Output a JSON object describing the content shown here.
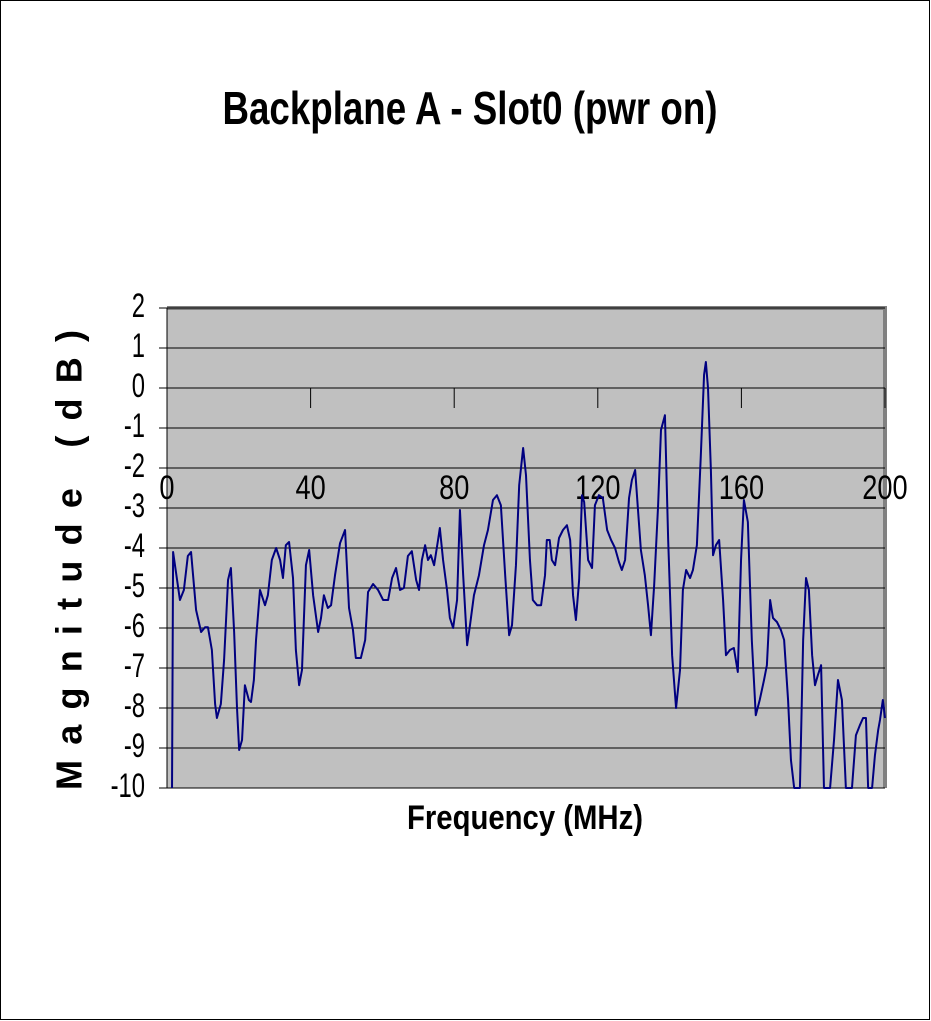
{
  "chart_data": {
    "type": "line",
    "title": "Backplane A - Slot0 (pwr on)",
    "x_label": "Frequency (MHz)",
    "y_label": "Magnitude (dB)",
    "xlim": [
      0,
      200
    ],
    "xticks": [
      0,
      40,
      80,
      120,
      160,
      200
    ],
    "ylim": [
      -10,
      2
    ],
    "yticks": [
      2,
      1,
      0,
      -1,
      -2,
      -3,
      -4,
      -5,
      -6,
      -7,
      -8,
      -9,
      -10
    ],
    "grid": true,
    "series": [
      {
        "name": "Magnitude",
        "color": "#000080",
        "x": [
          1.4,
          1.7,
          3.6,
          4.7,
          5.8,
          6.7,
          8.1,
          9.5,
          10.6,
          11.4,
          12.5,
          13.4,
          13.9,
          15,
          15.9,
          17,
          17.8,
          18.7,
          19.5,
          20.1,
          20.9,
          21.7,
          22.8,
          23.4,
          24.2,
          24.8,
          25.9,
          27.3,
          28.1,
          29.2,
          30.4,
          31.5,
          32.3,
          33.1,
          34,
          35.1,
          35.9,
          36.8,
          37.6,
          38.7,
          39.6,
          40.7,
          42.1,
          42.9,
          43.7,
          44.8,
          45.7,
          46.8,
          48.2,
          49.6,
          50.7,
          51.8,
          52.6,
          54,
          55.2,
          56,
          57.4,
          58.8,
          60.2,
          61.6,
          62.7,
          63.8,
          64.9,
          66,
          67.1,
          68.2,
          69.4,
          70.2,
          71,
          71.9,
          72.7,
          73.5,
          74.4,
          75.5,
          76,
          76.9,
          78,
          78.8,
          79.7,
          80.8,
          81.6,
          82.5,
          83.6,
          84.4,
          85.5,
          86.9,
          88.3,
          89.4,
          90.8,
          91.9,
          93,
          94.2,
          95.3,
          96.1,
          97.2,
          98.1,
          99.2,
          100,
          101.1,
          101.9,
          103.1,
          104.2,
          105.3,
          105.8,
          106.6,
          107.2,
          108.1,
          109.2,
          110.3,
          111.4,
          112.3,
          113.1,
          113.9,
          114.8,
          115.6,
          116.2,
          117.3,
          118.4,
          119.2,
          120.3,
          121.4,
          122.6,
          123.7,
          124.8,
          125.9,
          126.7,
          127.6,
          128.7,
          129.5,
          130.4,
          131.2,
          132,
          133.1,
          134,
          134.8,
          135.7,
          136.8,
          137.6,
          138.7,
          139.6,
          140.7,
          141.8,
          142.9,
          143.7,
          144.6,
          145.7,
          146.5,
          147.6,
          148.7,
          149.6,
          150.1,
          150.7,
          151.5,
          152.1,
          152.9,
          153.8,
          154.9,
          155.7,
          156.8,
          157.9,
          159,
          159.9,
          160.7,
          161.8,
          162.9,
          164,
          165.1,
          166.3,
          167.1,
          168,
          168.8,
          169.9,
          171,
          171.9,
          173,
          173.8,
          174.7,
          176.3,
          177.2,
          178,
          178.8,
          179.7,
          180.5,
          181.3,
          182.2,
          183,
          184.7,
          185.8,
          186.9,
          188,
          189.1,
          190.8,
          191.9,
          193,
          193.9,
          194.7,
          195.3,
          196.4,
          197.2,
          198.1,
          198.6,
          199.4,
          200
        ],
        "values": [
          -10,
          -4.1,
          -5.3,
          -5.05,
          -4.2,
          -4.1,
          -5.55,
          -6.1,
          -5.98,
          -5.98,
          -6.55,
          -7.9,
          -8.25,
          -7.9,
          -6.8,
          -4.8,
          -4.5,
          -6.1,
          -8,
          -9.05,
          -8.8,
          -7.43,
          -7.8,
          -7.85,
          -7.3,
          -6.3,
          -5.05,
          -5.43,
          -5.18,
          -4.3,
          -4,
          -4.3,
          -4.75,
          -3.93,
          -3.85,
          -4.75,
          -6.55,
          -7.43,
          -7.05,
          -4.43,
          -4.05,
          -5.18,
          -6.1,
          -5.75,
          -5.18,
          -5.5,
          -5.43,
          -4.68,
          -3.88,
          -3.55,
          -5.5,
          -6.05,
          -6.75,
          -6.75,
          -6.3,
          -5.1,
          -4.9,
          -5.05,
          -5.3,
          -5.3,
          -4.75,
          -4.5,
          -5.05,
          -5,
          -4.2,
          -4.08,
          -4.8,
          -5.05,
          -4.3,
          -3.93,
          -4.3,
          -4.18,
          -4.43,
          -3.8,
          -3.5,
          -4.3,
          -5.05,
          -5.75,
          -6,
          -5.3,
          -3.05,
          -4.68,
          -6.43,
          -5.93,
          -5.18,
          -4.68,
          -3.93,
          -3.55,
          -2.8,
          -2.68,
          -2.93,
          -4.68,
          -6.18,
          -5.93,
          -4.43,
          -2.43,
          -1.5,
          -2.18,
          -4.3,
          -5.3,
          -5.43,
          -5.43,
          -4.68,
          -3.8,
          -3.8,
          -4.3,
          -4.43,
          -3.75,
          -3.55,
          -3.43,
          -3.8,
          -5.18,
          -5.8,
          -4.8,
          -2.68,
          -2.85,
          -4.3,
          -4.5,
          -2.93,
          -2.68,
          -2.75,
          -3.55,
          -3.8,
          -4,
          -4.35,
          -4.55,
          -4.3,
          -2.75,
          -2.3,
          -2.05,
          -3.05,
          -4.05,
          -4.68,
          -5.43,
          -6.18,
          -4.93,
          -2.93,
          -1.05,
          -0.68,
          -3.8,
          -6.68,
          -8,
          -7.05,
          -5.05,
          -4.55,
          -4.75,
          -4.55,
          -3.93,
          -1.68,
          0.33,
          0.65,
          0,
          -2.05,
          -4.18,
          -3.93,
          -3.8,
          -5.3,
          -6.68,
          -6.55,
          -6.5,
          -7.1,
          -4.3,
          -2.8,
          -3.35,
          -6.3,
          -8.18,
          -7.8,
          -7.3,
          -6.93,
          -5.3,
          -5.75,
          -5.85,
          -6.05,
          -6.3,
          -7.8,
          -9.3,
          -10,
          -10,
          -6.3,
          -4.75,
          -5.05,
          -6.68,
          -7.43,
          -7.18,
          -6.93,
          -10,
          -10,
          -8.8,
          -7.3,
          -7.8,
          -10,
          -10,
          -8.68,
          -8.43,
          -8.25,
          -8.25,
          -10,
          -10,
          -9.18,
          -8.55,
          -8.3,
          -7.8,
          -8.25
        ]
      }
    ]
  }
}
